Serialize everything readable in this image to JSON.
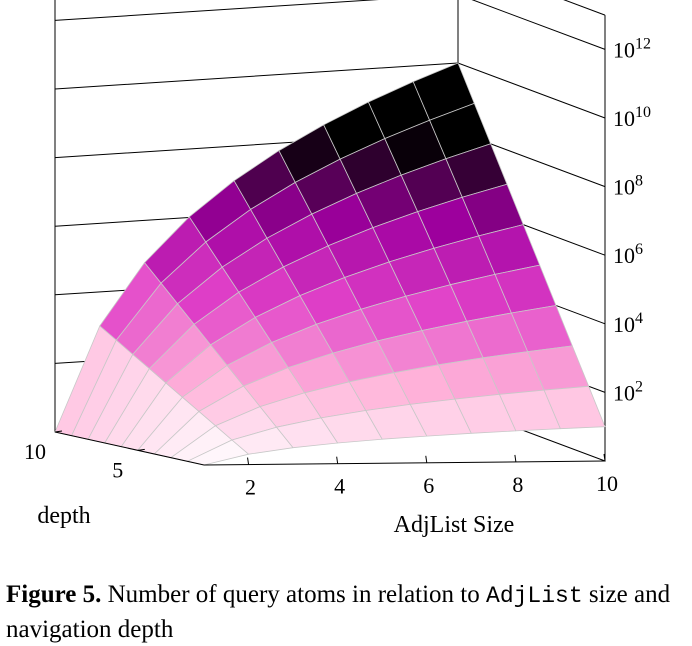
{
  "chart_data": {
    "type": "surface3d",
    "title": "",
    "x_axis": {
      "label": "AdjList Size",
      "ticks": [
        2,
        4,
        6,
        8,
        10
      ],
      "range": [
        1,
        10
      ]
    },
    "y_axis": {
      "label": "depth",
      "ticks": [
        5,
        10
      ],
      "range": [
        1,
        10
      ]
    },
    "z_axis": {
      "label": "",
      "scale": "log",
      "ticks": [
        {
          "base": "10",
          "exp": "2"
        },
        {
          "base": "10",
          "exp": "4"
        },
        {
          "base": "10",
          "exp": "6"
        },
        {
          "base": "10",
          "exp": "8"
        },
        {
          "base": "10",
          "exp": "10"
        },
        {
          "base": "10",
          "exp": "12"
        }
      ],
      "range_exponent": [
        0,
        13
      ]
    },
    "grid": "x: 1..10, depth: 1..10",
    "formula": "z = x^depth",
    "colormap": [
      "#ffffff",
      "#ffb3d9",
      "#e040c8",
      "#a000a0",
      "#000000"
    ],
    "colormap_range_exponent": [
      0,
      8
    ]
  },
  "caption": {
    "label": "Figure 5.",
    "text_before": " Number of query atoms in relation to ",
    "code": "AdjList",
    "text_after": " size and navigation depth"
  }
}
